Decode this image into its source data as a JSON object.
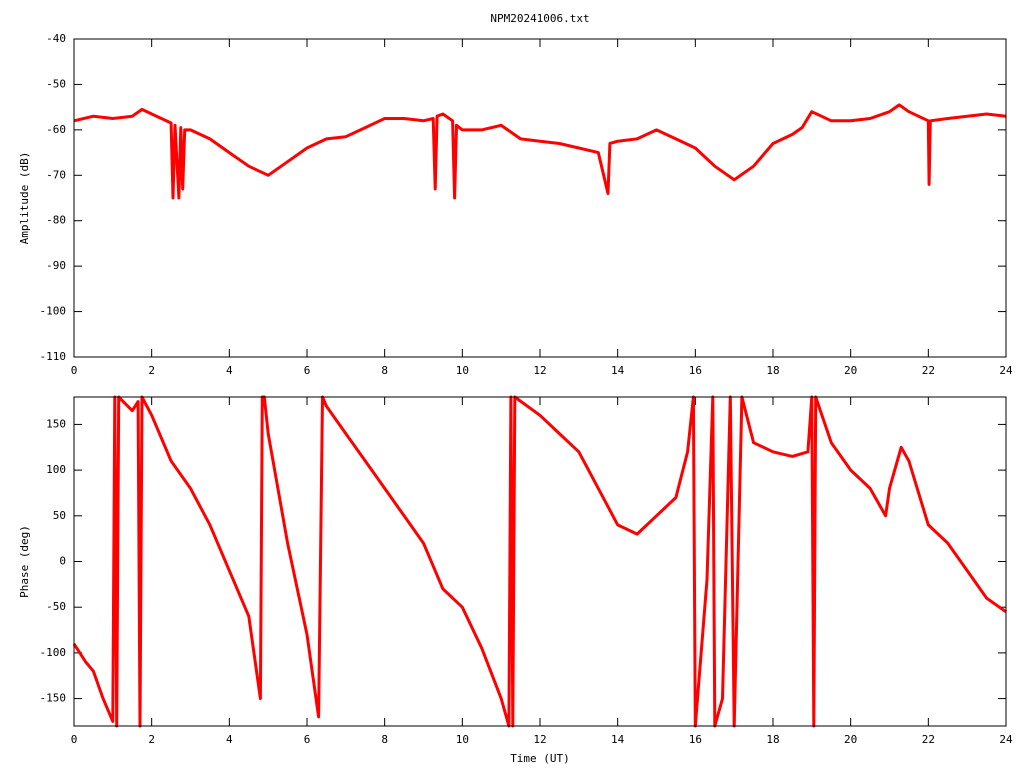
{
  "chart_data": [
    {
      "type": "line",
      "title": "NPM20241006.txt",
      "ylabel": "Amplitude (dB)",
      "xlim": [
        0,
        24
      ],
      "xticks": [
        0,
        2,
        4,
        6,
        8,
        10,
        12,
        14,
        16,
        18,
        20,
        22,
        24
      ],
      "ylim": [
        -110,
        -40
      ],
      "yticks": [
        -110,
        -100,
        -90,
        -80,
        -70,
        -60,
        -50,
        -40
      ],
      "series": [
        {
          "color": "#ff0000",
          "x": [
            0,
            0.5,
            1,
            1.5,
            1.75,
            2,
            2.5,
            2.55,
            2.6,
            2.7,
            2.75,
            2.8,
            2.85,
            3,
            3.5,
            4,
            4.5,
            5,
            5.5,
            6,
            6.5,
            7,
            7.5,
            8,
            8.5,
            9,
            9.25,
            9.3,
            9.35,
            9.5,
            9.75,
            9.8,
            9.85,
            10,
            10.5,
            11,
            11.5,
            12,
            12.5,
            13,
            13.5,
            13.75,
            13.8,
            14,
            14.5,
            15,
            15.5,
            16,
            16.5,
            17,
            17.5,
            18,
            18.5,
            18.75,
            19,
            19.5,
            20,
            20.5,
            21,
            21.25,
            21.5,
            22,
            22.02,
            22.05,
            22.5,
            23,
            23.5,
            24
          ],
          "values": [
            -58,
            -57,
            -57.5,
            -57,
            -55.5,
            -56.5,
            -58.5,
            -75,
            -59,
            -75,
            -59.5,
            -73,
            -60,
            -60,
            -62,
            -65,
            -68,
            -70,
            -67,
            -64,
            -62,
            -61.5,
            -59.5,
            -57.5,
            -57.5,
            -58,
            -57.5,
            -73,
            -57,
            -56.5,
            -58,
            -75,
            -59,
            -60,
            -60,
            -59,
            -62,
            -62.5,
            -63,
            -64,
            -65,
            -74,
            -63,
            -62.5,
            -62,
            -60,
            -62,
            -64,
            -68,
            -71,
            -68,
            -63,
            -61,
            -59.5,
            -56,
            -58,
            -58,
            -57.5,
            -56,
            -54.5,
            -56,
            -58,
            -72,
            -58,
            -57.5,
            -57,
            -56.5,
            -57
          ]
        }
      ]
    },
    {
      "type": "line",
      "ylabel": "Phase (deg)",
      "xlabel": "Time (UT)",
      "xlim": [
        0,
        24
      ],
      "xticks": [
        0,
        2,
        4,
        6,
        8,
        10,
        12,
        14,
        16,
        18,
        20,
        22,
        24
      ],
      "ylim": [
        -180,
        180
      ],
      "yticks": [
        -150,
        -100,
        -50,
        0,
        50,
        100,
        150
      ],
      "series": [
        {
          "color": "#ff0000",
          "x": [
            0,
            0.3,
            0.5,
            0.75,
            1,
            1.05,
            1.1,
            1.15,
            1.5,
            1.65,
            1.7,
            1.75,
            2,
            2.5,
            3,
            3.5,
            4,
            4.5,
            4.8,
            4.85,
            4.9,
            5,
            5.5,
            6,
            6.3,
            6.4,
            6.5,
            7,
            7.5,
            8,
            8.5,
            9,
            9.5,
            10,
            10.5,
            11,
            11.2,
            11.25,
            11.3,
            11.35,
            12,
            12.5,
            13,
            13.5,
            14,
            14.5,
            15,
            15.5,
            15.8,
            15.95,
            16,
            16.3,
            16.45,
            16.5,
            16.7,
            16.9,
            17,
            17.2,
            17.5,
            18,
            18.5,
            18.9,
            19,
            19.05,
            19.1,
            19.5,
            20,
            20.5,
            20.9,
            21,
            21.3,
            21.5,
            22,
            22.5,
            23,
            23.5,
            24
          ],
          "values": [
            -90,
            -110,
            -120,
            -150,
            -175,
            180,
            -180,
            180,
            165,
            175,
            -180,
            180,
            160,
            110,
            80,
            40,
            -10,
            -60,
            -150,
            180,
            180,
            140,
            20,
            -80,
            -170,
            180,
            170,
            140,
            110,
            80,
            50,
            20,
            -30,
            -50,
            -95,
            -150,
            -180,
            180,
            -180,
            180,
            160,
            140,
            120,
            80,
            40,
            30,
            50,
            70,
            120,
            180,
            -180,
            -20,
            180,
            -180,
            -150,
            180,
            -180,
            180,
            130,
            120,
            115,
            120,
            180,
            -180,
            180,
            130,
            100,
            80,
            50,
            80,
            125,
            110,
            40,
            20,
            -10,
            -40,
            -55
          ]
        }
      ]
    }
  ]
}
